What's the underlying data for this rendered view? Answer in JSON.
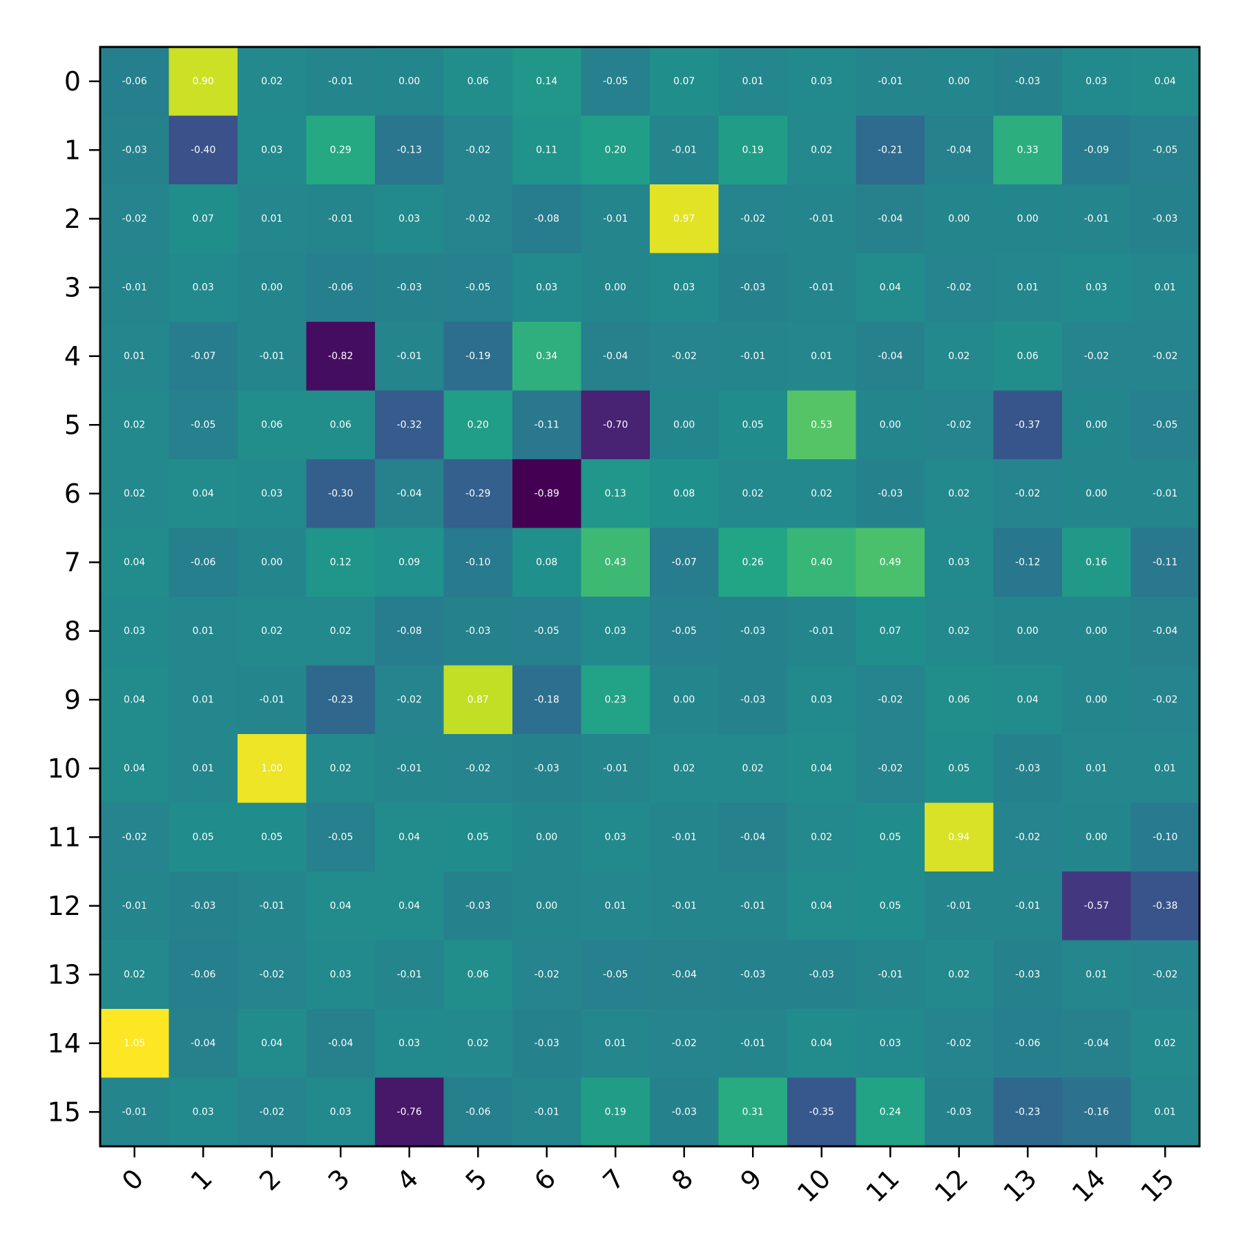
{
  "chart_data": {
    "type": "heatmap",
    "title": "",
    "xlabel": "",
    "ylabel": "",
    "colormap": "viridis",
    "value_range": [
      -0.89,
      1.05
    ],
    "x_ticks": [
      "0",
      "1",
      "2",
      "3",
      "4",
      "5",
      "6",
      "7",
      "8",
      "9",
      "10",
      "11",
      "12",
      "13",
      "14",
      "15"
    ],
    "y_ticks": [
      "0",
      "1",
      "2",
      "3",
      "4",
      "5",
      "6",
      "7",
      "8",
      "9",
      "10",
      "11",
      "12",
      "13",
      "14",
      "15"
    ],
    "cell_text_color": "#ffffff",
    "values": [
      [
        -0.06,
        0.9,
        0.02,
        -0.01,
        0.0,
        0.06,
        0.14,
        -0.05,
        0.07,
        0.01,
        0.03,
        -0.01,
        0.0,
        -0.03,
        0.03,
        0.04
      ],
      [
        -0.03,
        -0.4,
        0.03,
        0.29,
        -0.13,
        -0.02,
        0.11,
        0.2,
        -0.01,
        0.19,
        0.02,
        -0.21,
        -0.04,
        0.33,
        -0.09,
        -0.05
      ],
      [
        -0.02,
        0.07,
        0.01,
        -0.01,
        0.03,
        -0.02,
        -0.08,
        -0.01,
        0.97,
        -0.02,
        -0.01,
        -0.04,
        -0.0,
        0.0,
        -0.01,
        -0.03
      ],
      [
        -0.01,
        0.03,
        -0.0,
        -0.06,
        -0.03,
        -0.05,
        0.03,
        0.0,
        0.03,
        -0.03,
        -0.01,
        0.04,
        -0.02,
        0.01,
        0.03,
        0.01
      ],
      [
        0.01,
        -0.07,
        -0.01,
        -0.82,
        -0.01,
        -0.19,
        0.34,
        -0.04,
        -0.02,
        -0.01,
        0.01,
        -0.04,
        0.02,
        0.06,
        -0.02,
        -0.02
      ],
      [
        0.02,
        -0.05,
        0.06,
        0.06,
        -0.32,
        0.2,
        -0.11,
        -0.7,
        -0.0,
        0.05,
        0.53,
        0.0,
        -0.02,
        -0.37,
        -0.0,
        -0.05
      ],
      [
        0.02,
        0.04,
        0.03,
        -0.3,
        -0.04,
        -0.29,
        -0.89,
        0.13,
        0.08,
        0.02,
        0.02,
        -0.03,
        0.02,
        -0.02,
        0.0,
        -0.01
      ],
      [
        0.04,
        -0.06,
        0.0,
        0.12,
        0.09,
        -0.1,
        0.08,
        0.43,
        -0.07,
        0.26,
        0.4,
        0.49,
        0.03,
        -0.12,
        0.16,
        -0.11
      ],
      [
        0.03,
        0.01,
        0.02,
        0.02,
        -0.08,
        -0.03,
        -0.05,
        0.03,
        -0.05,
        -0.03,
        -0.01,
        0.07,
        0.02,
        -0.0,
        0.0,
        -0.04
      ],
      [
        0.04,
        0.01,
        -0.01,
        -0.23,
        -0.02,
        0.87,
        -0.18,
        0.23,
        -0.0,
        -0.03,
        0.03,
        -0.02,
        0.06,
        0.04,
        0.0,
        -0.02
      ],
      [
        0.04,
        0.01,
        1.0,
        0.02,
        -0.01,
        -0.02,
        -0.03,
        -0.01,
        0.02,
        0.02,
        0.04,
        -0.02,
        0.05,
        -0.03,
        0.01,
        0.01
      ],
      [
        -0.02,
        0.05,
        0.05,
        -0.05,
        0.04,
        0.05,
        -0.0,
        0.03,
        -0.01,
        -0.04,
        0.02,
        0.05,
        0.94,
        -0.02,
        -0.0,
        -0.1
      ],
      [
        -0.01,
        -0.03,
        -0.01,
        0.04,
        0.04,
        -0.03,
        0.0,
        0.01,
        -0.01,
        -0.01,
        0.04,
        0.05,
        -0.01,
        -0.01,
        -0.57,
        -0.38
      ],
      [
        0.02,
        -0.06,
        -0.02,
        0.03,
        -0.01,
        0.06,
        -0.02,
        -0.05,
        -0.04,
        -0.03,
        -0.03,
        -0.01,
        0.02,
        -0.03,
        0.01,
        -0.02
      ],
      [
        1.05,
        -0.04,
        0.04,
        -0.04,
        0.03,
        0.02,
        -0.03,
        0.01,
        -0.02,
        -0.01,
        0.04,
        0.03,
        -0.02,
        -0.06,
        -0.04,
        0.02
      ],
      [
        -0.01,
        0.03,
        -0.02,
        0.03,
        -0.76,
        -0.06,
        -0.01,
        0.19,
        -0.03,
        0.31,
        -0.35,
        0.24,
        -0.03,
        -0.23,
        -0.16,
        0.01
      ]
    ]
  }
}
